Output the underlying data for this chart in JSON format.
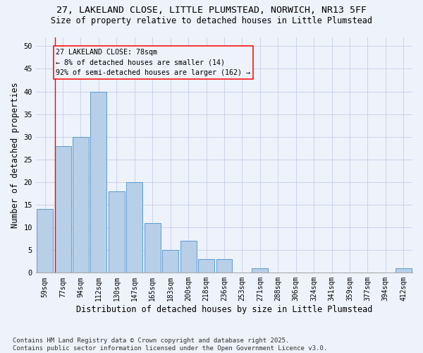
{
  "title1": "27, LAKELAND CLOSE, LITTLE PLUMSTEAD, NORWICH, NR13 5FF",
  "title2": "Size of property relative to detached houses in Little Plumstead",
  "xlabel": "Distribution of detached houses by size in Little Plumstead",
  "ylabel": "Number of detached properties",
  "categories": [
    "59sqm",
    "77sqm",
    "94sqm",
    "112sqm",
    "130sqm",
    "147sqm",
    "165sqm",
    "183sqm",
    "200sqm",
    "218sqm",
    "236sqm",
    "253sqm",
    "271sqm",
    "288sqm",
    "306sqm",
    "324sqm",
    "341sqm",
    "359sqm",
    "377sqm",
    "394sqm",
    "412sqm"
  ],
  "values": [
    14,
    28,
    30,
    40,
    18,
    20,
    11,
    5,
    7,
    3,
    3,
    0,
    1,
    0,
    0,
    0,
    0,
    0,
    0,
    0,
    1
  ],
  "bar_color": "#b8cfe8",
  "bar_edge_color": "#5b9bd5",
  "annotation_line1": "27 LAKELAND CLOSE: 78sqm",
  "annotation_line2": "← 8% of detached houses are smaller (14)",
  "annotation_line3": "92% of semi-detached houses are larger (162) →",
  "property_line_color": "red",
  "ylim": [
    0,
    52
  ],
  "yticks": [
    0,
    5,
    10,
    15,
    20,
    25,
    30,
    35,
    40,
    45,
    50
  ],
  "footnote": "Contains HM Land Registry data © Crown copyright and database right 2025.\nContains public sector information licensed under the Open Government Licence v3.0.",
  "background_color": "#eef2fb",
  "grid_color": "#c5cfe8"
}
